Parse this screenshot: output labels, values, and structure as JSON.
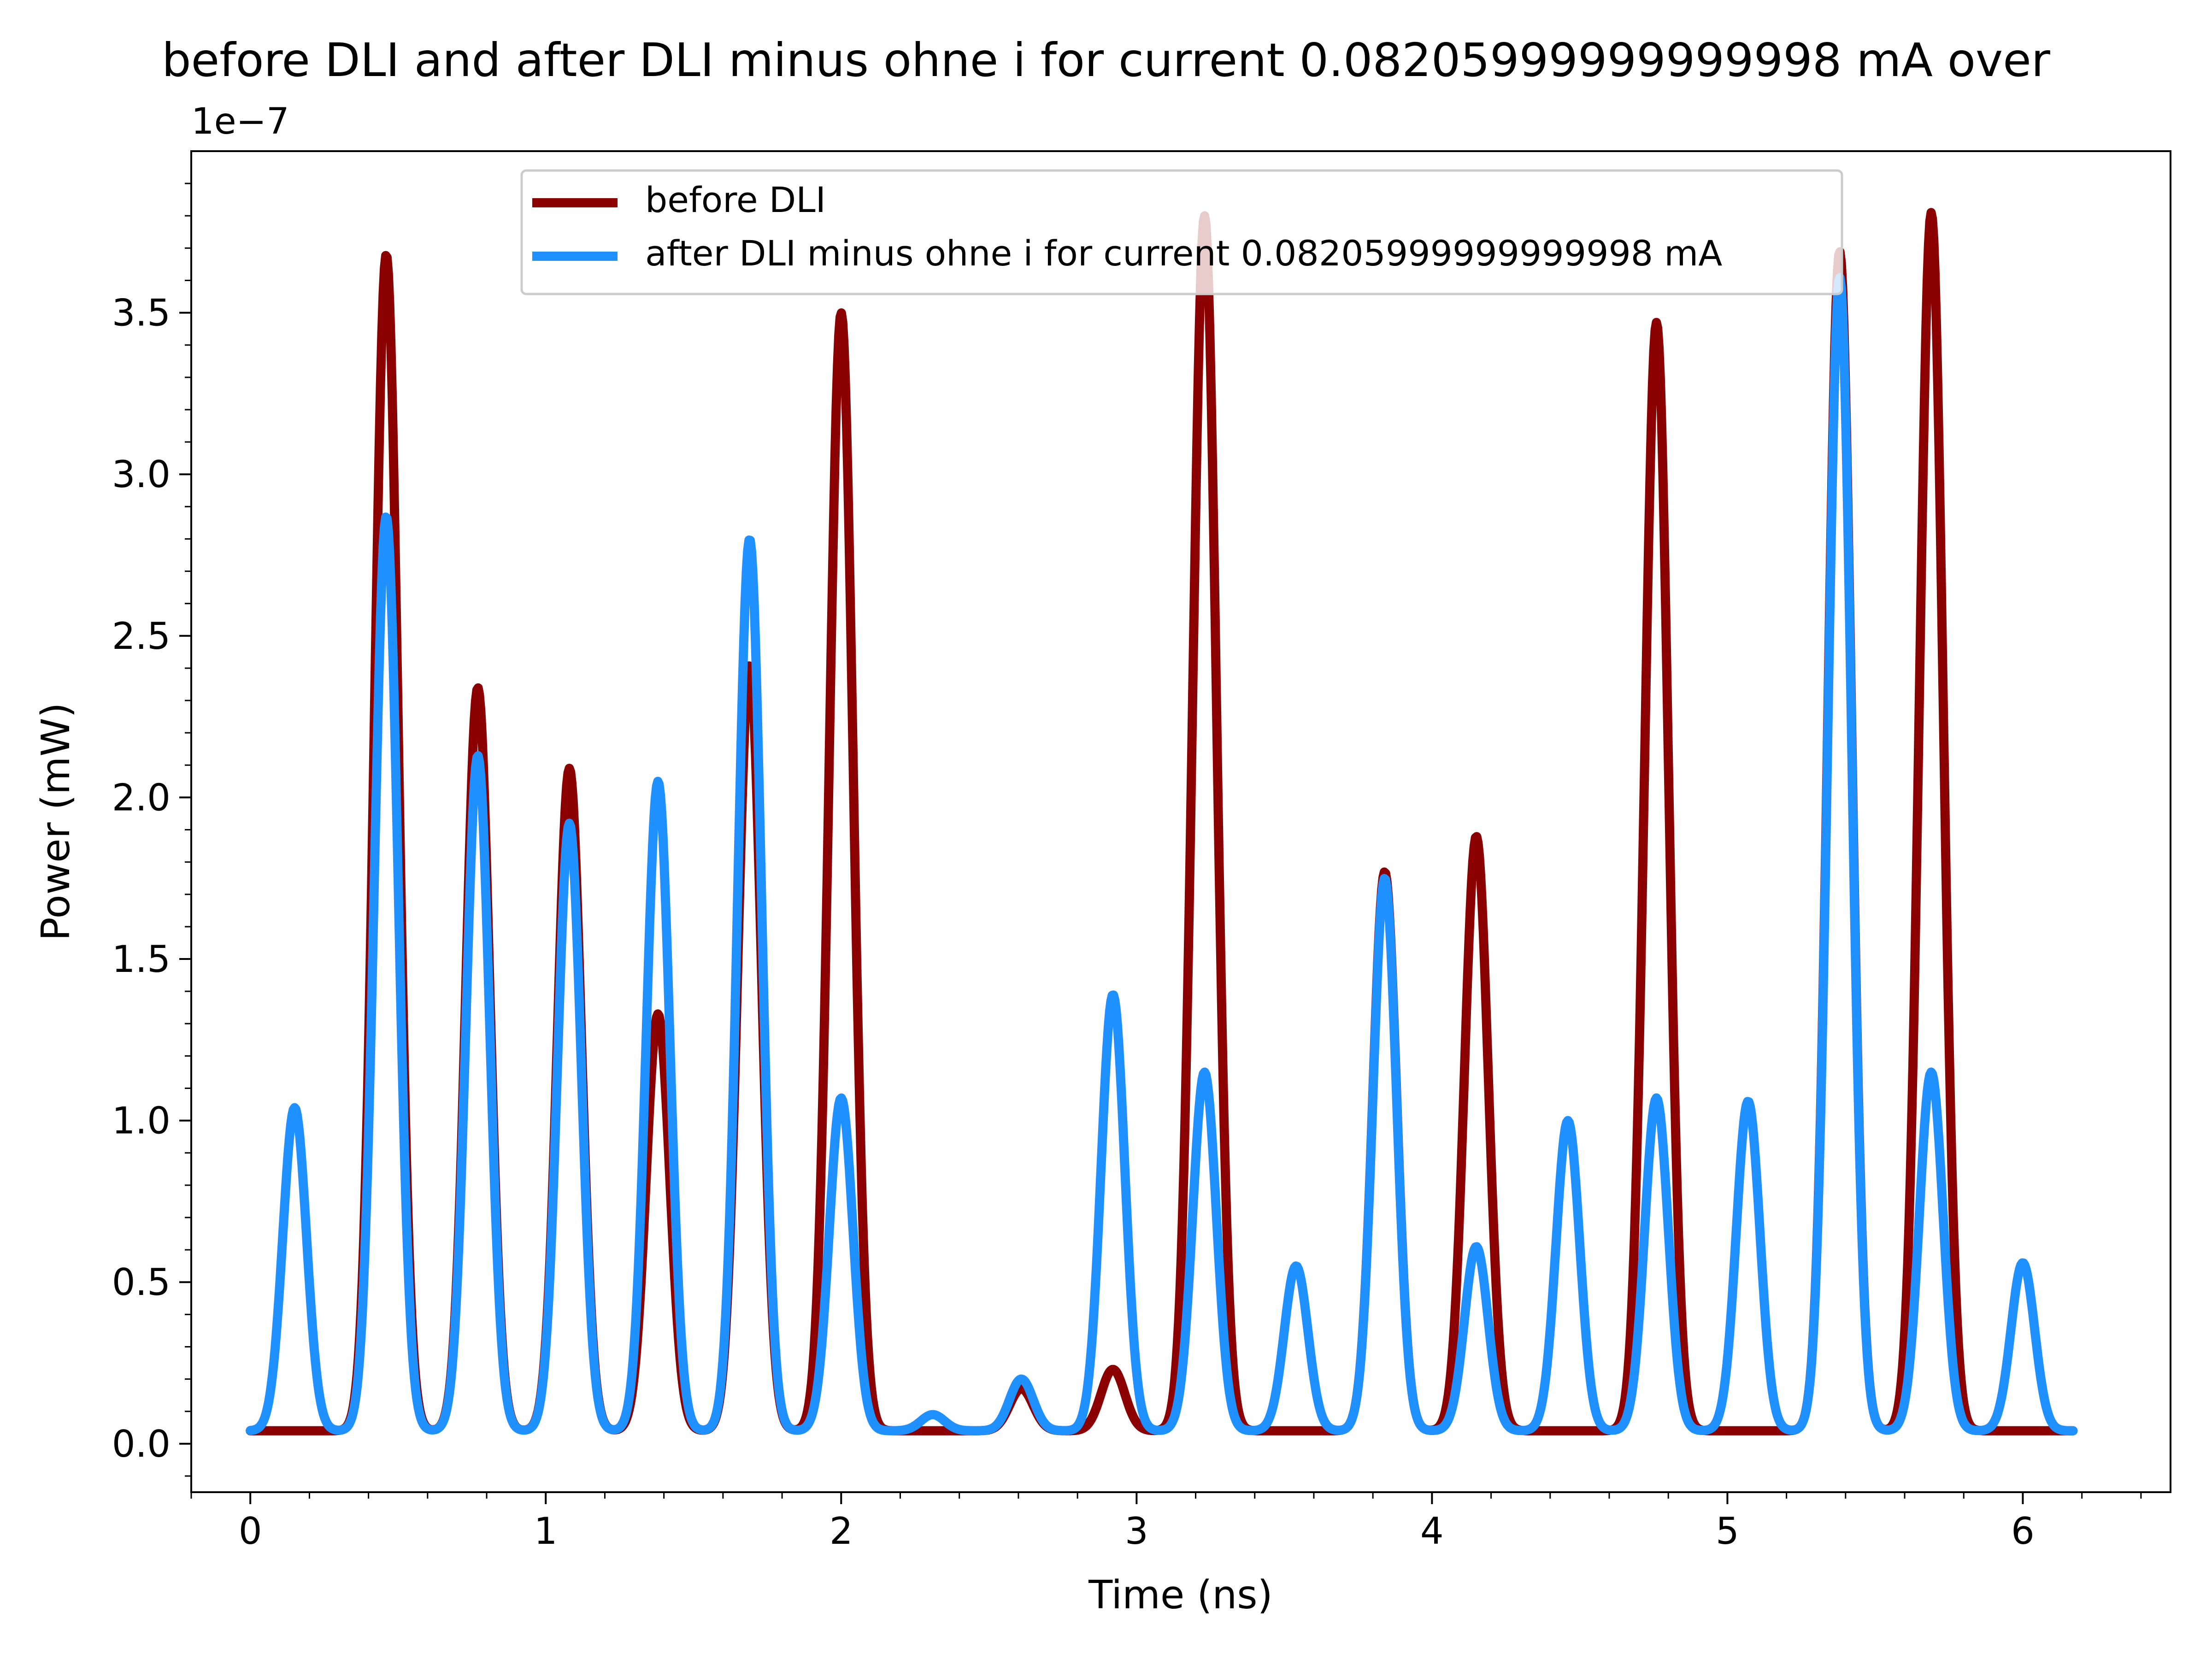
{
  "chart_data": {
    "type": "line",
    "title": "before DLI and after DLI minus ohne i for current 0.08205999999999998 mA over",
    "xlabel": "Time (ns)",
    "ylabel": "Power (mW)",
    "y_offset_label": "1e−7",
    "xlim": [
      -0.2,
      6.5
    ],
    "ylim": [
      -0.15,
      4.0
    ],
    "y_scale_exponent": -7,
    "x_ticks": [
      0,
      1,
      2,
      3,
      4,
      5,
      6
    ],
    "x_tick_labels": [
      "0",
      "1",
      "2",
      "3",
      "4",
      "5",
      "6"
    ],
    "y_ticks": [
      0.0,
      0.5,
      1.0,
      1.5,
      2.0,
      2.5,
      3.0,
      3.5
    ],
    "y_tick_labels": [
      "0.0",
      "0.5",
      "1.0",
      "1.5",
      "2.0",
      "2.5",
      "3.0",
      "3.5"
    ],
    "grid": false,
    "legend_position": "upper center",
    "x_range": [
      0,
      6.17
    ],
    "baseline": 0.04,
    "pulse_sigma_ns": 0.04,
    "series": [
      {
        "name": "before DLI",
        "color": "#8b0000",
        "peaks": [
          {
            "x": 0.46,
            "y": 3.68
          },
          {
            "x": 0.77,
            "y": 2.34
          },
          {
            "x": 1.08,
            "y": 2.09
          },
          {
            "x": 1.38,
            "y": 1.33
          },
          {
            "x": 1.69,
            "y": 2.41
          },
          {
            "x": 2.0,
            "y": 3.5
          },
          {
            "x": 2.61,
            "y": 0.17
          },
          {
            "x": 2.92,
            "y": 0.23
          },
          {
            "x": 3.23,
            "y": 3.8
          },
          {
            "x": 3.84,
            "y": 1.77
          },
          {
            "x": 4.15,
            "y": 1.88
          },
          {
            "x": 4.76,
            "y": 3.47
          },
          {
            "x": 5.38,
            "y": 3.69
          },
          {
            "x": 5.69,
            "y": 3.81
          }
        ]
      },
      {
        "name": "after DLI minus ohne i for current 0.08205999999999998 mA",
        "color": "#1e90ff",
        "peaks": [
          {
            "x": 0.15,
            "y": 1.04
          },
          {
            "x": 0.46,
            "y": 2.87
          },
          {
            "x": 0.77,
            "y": 2.13
          },
          {
            "x": 1.08,
            "y": 1.92
          },
          {
            "x": 1.38,
            "y": 2.05
          },
          {
            "x": 1.69,
            "y": 2.8
          },
          {
            "x": 2.0,
            "y": 1.07
          },
          {
            "x": 2.31,
            "y": 0.09
          },
          {
            "x": 2.61,
            "y": 0.2
          },
          {
            "x": 2.92,
            "y": 1.39
          },
          {
            "x": 3.23,
            "y": 1.15
          },
          {
            "x": 3.54,
            "y": 0.55
          },
          {
            "x": 3.84,
            "y": 1.75
          },
          {
            "x": 4.15,
            "y": 0.61
          },
          {
            "x": 4.46,
            "y": 1.0
          },
          {
            "x": 4.76,
            "y": 1.07
          },
          {
            "x": 5.07,
            "y": 1.06
          },
          {
            "x": 5.38,
            "y": 3.61
          },
          {
            "x": 5.69,
            "y": 1.15
          },
          {
            "x": 6.0,
            "y": 0.56
          }
        ]
      }
    ]
  }
}
